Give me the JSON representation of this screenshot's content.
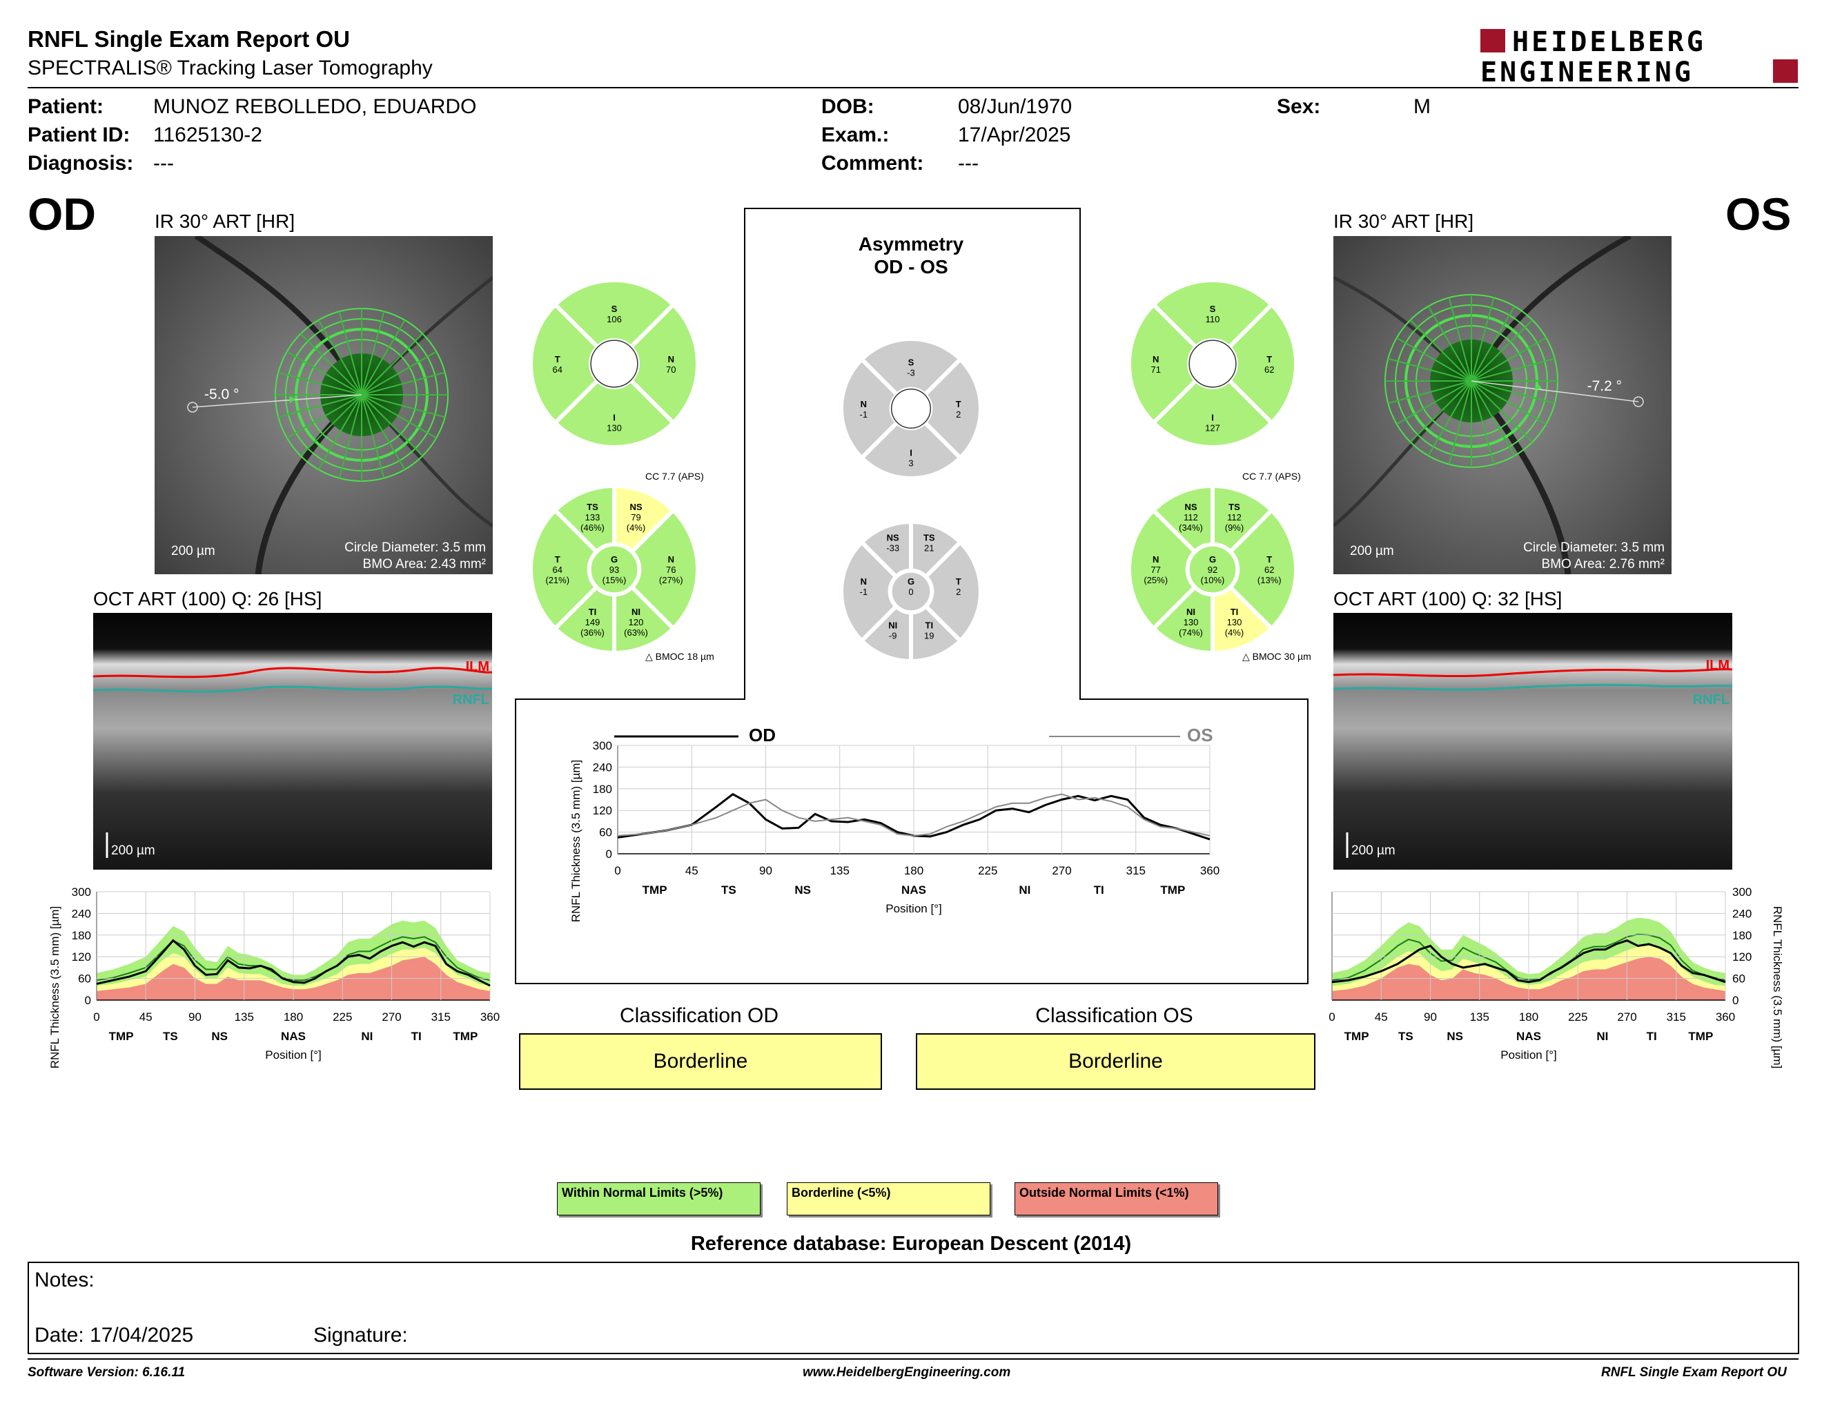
{
  "header": {
    "title": "RNFL Single Exam Report OU",
    "subtitle": "SPECTRALIS® Tracking Laser Tomography",
    "logo_line1": "HEIDELBERG",
    "logo_line2": "ENGINEERING"
  },
  "patient": {
    "patient_label": "Patient:",
    "patient": "MUNOZ REBOLLEDO, EDUARDO",
    "id_label": "Patient ID:",
    "id": "11625130-2",
    "diag_label": "Diagnosis:",
    "diagnosis": "---",
    "dob_label": "DOB:",
    "dob": "08/Jun/1970",
    "exam_label": "Exam.:",
    "exam": "17/Apr/2025",
    "comment_label": "Comment:",
    "comment": "---",
    "sex_label": "Sex:",
    "sex": "M"
  },
  "od": {
    "eye": "OD",
    "ir_title": "IR 30° ART [HR]",
    "angle": "-5.0 °",
    "scale": "200 µm",
    "circle": "Circle Diameter: 3.5 mm",
    "bmo": "BMO Area: 2.43 mm²",
    "oct_title": "OCT ART (100) Q: 26 [HS]",
    "ilm": "ILM",
    "rnfl": "RNFL",
    "oct_scale": "200 µm",
    "quad": {
      "s": "106",
      "n": "70",
      "i": "130",
      "t": "64"
    },
    "cc": "CC 7.7 (APS)",
    "bmoc": "BMOC 18 µm",
    "sectors": {
      "ts": [
        "TS",
        "133",
        "(46%)"
      ],
      "ns": [
        "NS",
        "79",
        "(4%)"
      ],
      "n": [
        "N",
        "76",
        "(27%)"
      ],
      "ni": [
        "NI",
        "120",
        "(63%)"
      ],
      "ti": [
        "TI",
        "149",
        "(36%)"
      ],
      "t": [
        "T",
        "64",
        "(21%)"
      ],
      "g": [
        "G",
        "93",
        "(15%)"
      ]
    },
    "class_title": "Classification OD",
    "class": "Borderline"
  },
  "os": {
    "eye": "OS",
    "ir_title": "IR 30° ART [HR]",
    "angle": "-7.2 °",
    "scale": "200 µm",
    "circle": "Circle Diameter: 3.5 mm",
    "bmo": "BMO Area: 2.76 mm²",
    "oct_title": "OCT ART (100) Q: 32 [HS]",
    "ilm": "ILM",
    "rnfl": "RNFL",
    "oct_scale": "200 µm",
    "quad": {
      "s": "110",
      "n": "71",
      "i": "127",
      "t": "62"
    },
    "cc": "CC 7.7 (APS)",
    "bmoc": "BMOC 30 µm",
    "sectors": {
      "ns": [
        "NS",
        "112",
        "(34%)"
      ],
      "ts": [
        "TS",
        "112",
        "(9%)"
      ],
      "t": [
        "T",
        "62",
        "(13%)"
      ],
      "ti": [
        "TI",
        "130",
        "(4%)"
      ],
      "ni": [
        "NI",
        "130",
        "(74%)"
      ],
      "n": [
        "N",
        "77",
        "(25%)"
      ],
      "g": [
        "G",
        "92",
        "(10%)"
      ]
    },
    "class_title": "Classification OS",
    "class": "Borderline"
  },
  "asym": {
    "title1": "Asymmetry",
    "title2": "OD - OS",
    "quad": {
      "s": [
        "S",
        "-3"
      ],
      "n": [
        "N",
        "-1"
      ],
      "t": [
        "T",
        "2"
      ],
      "i": [
        "I",
        "3"
      ]
    },
    "sectors": {
      "ns": [
        "NS",
        "-33"
      ],
      "ts": [
        "TS",
        "21"
      ],
      "n": [
        "N",
        "-1"
      ],
      "g": [
        "G",
        "0"
      ],
      "t": [
        "T",
        "2"
      ],
      "ni": [
        "NI",
        "-9"
      ],
      "ti": [
        "TI",
        "19"
      ]
    }
  },
  "chart_data": [
    {
      "type": "line",
      "id": "combined",
      "legend": [
        "OD",
        "OS"
      ],
      "ylabel": "RNFL Thickness (3.5 mm) [µm]",
      "xlabel": "Position [°]",
      "ylim": [
        0,
        300
      ],
      "xlim": [
        0,
        360
      ],
      "yticks": [
        0,
        60,
        120,
        180,
        240,
        300
      ],
      "xticks": [
        0,
        45,
        90,
        135,
        180,
        225,
        270,
        315,
        360
      ],
      "sector_labels": [
        "TMP",
        "TS",
        "NS",
        "NAS",
        "NI",
        "TI",
        "TMP"
      ],
      "x": [
        0,
        15,
        30,
        45,
        60,
        70,
        80,
        90,
        100,
        110,
        120,
        130,
        140,
        150,
        160,
        170,
        180,
        190,
        200,
        210,
        220,
        230,
        240,
        250,
        260,
        270,
        280,
        290,
        300,
        310,
        320,
        330,
        340,
        350,
        360
      ],
      "series": [
        {
          "name": "OD",
          "values": [
            45,
            55,
            65,
            80,
            130,
            165,
            140,
            95,
            70,
            72,
            110,
            90,
            88,
            95,
            85,
            60,
            50,
            48,
            60,
            80,
            95,
            120,
            125,
            115,
            135,
            150,
            160,
            148,
            160,
            150,
            100,
            80,
            70,
            55,
            40
          ]
        },
        {
          "name": "OS",
          "values": [
            50,
            55,
            65,
            80,
            100,
            120,
            140,
            150,
            120,
            100,
            90,
            95,
            100,
            90,
            80,
            55,
            50,
            55,
            75,
            90,
            110,
            130,
            140,
            140,
            155,
            165,
            150,
            155,
            145,
            130,
            95,
            75,
            70,
            60,
            50
          ]
        }
      ]
    },
    {
      "type": "area",
      "id": "od_profile",
      "ylabel": "RNFL Thickness (3.5 mm) [µm]",
      "xlabel": "Position [°]",
      "ylim": [
        0,
        300
      ],
      "xlim": [
        0,
        360
      ],
      "yticks": [
        0,
        60,
        120,
        180,
        240,
        300
      ],
      "xticks": [
        0,
        45,
        90,
        135,
        180,
        225,
        270,
        315,
        360
      ],
      "sector_labels": [
        "TMP",
        "TS",
        "NS",
        "NAS",
        "NI",
        "TI",
        "TMP"
      ],
      "x": [
        0,
        15,
        30,
        45,
        60,
        70,
        80,
        90,
        100,
        110,
        120,
        130,
        140,
        150,
        160,
        170,
        180,
        190,
        200,
        210,
        220,
        230,
        240,
        250,
        260,
        270,
        280,
        290,
        300,
        310,
        320,
        330,
        340,
        350,
        360
      ],
      "bands": {
        "red_top": [
          25,
          30,
          35,
          45,
          80,
          100,
          90,
          60,
          45,
          45,
          65,
          55,
          55,
          55,
          45,
          35,
          30,
          30,
          35,
          45,
          55,
          70,
          75,
          75,
          85,
          95,
          110,
          115,
          120,
          100,
          70,
          50,
          40,
          30,
          25
        ],
        "yellow_top": [
          40,
          45,
          55,
          65,
          110,
          130,
          120,
          85,
          60,
          60,
          90,
          75,
          72,
          72,
          60,
          45,
          40,
          40,
          50,
          60,
          72,
          95,
          100,
          100,
          115,
          128,
          140,
          140,
          145,
          130,
          95,
          70,
          60,
          45,
          40
        ],
        "green_top": [
          75,
          85,
          100,
          120,
          170,
          205,
          190,
          145,
          110,
          105,
          150,
          130,
          125,
          115,
          100,
          80,
          70,
          70,
          85,
          105,
          125,
          160,
          170,
          170,
          190,
          210,
          220,
          215,
          220,
          200,
          150,
          110,
          95,
          80,
          75
        ],
        "normal": [
          55,
          62,
          75,
          90,
          135,
          165,
          150,
          110,
          85,
          85,
          120,
          100,
          95,
          95,
          80,
          62,
          55,
          55,
          65,
          80,
          95,
          125,
          135,
          135,
          150,
          165,
          175,
          170,
          175,
          160,
          120,
          90,
          75,
          62,
          55
        ]
      },
      "series": [
        {
          "name": "OD",
          "values": [
            45,
            55,
            65,
            80,
            130,
            165,
            140,
            95,
            70,
            72,
            110,
            90,
            88,
            95,
            85,
            60,
            50,
            48,
            60,
            80,
            95,
            120,
            125,
            115,
            135,
            150,
            160,
            148,
            160,
            150,
            100,
            80,
            70,
            55,
            40
          ]
        }
      ]
    },
    {
      "type": "area",
      "id": "os_profile",
      "ylabel": "RNFL Thickness (3.5 mm) [µm]",
      "xlabel": "Position [°]",
      "ylim": [
        0,
        300
      ],
      "xlim": [
        0,
        360
      ],
      "yticks": [
        0,
        60,
        120,
        180,
        240,
        300
      ],
      "xticks": [
        0,
        45,
        90,
        135,
        180,
        225,
        270,
        315,
        360
      ],
      "sector_labels": [
        "TMP",
        "TS",
        "NS",
        "NAS",
        "NI",
        "TI",
        "TMP"
      ],
      "x": [
        0,
        15,
        30,
        45,
        60,
        70,
        80,
        90,
        100,
        110,
        120,
        130,
        140,
        150,
        160,
        170,
        180,
        190,
        200,
        210,
        220,
        230,
        240,
        250,
        260,
        270,
        280,
        290,
        300,
        310,
        320,
        330,
        340,
        350,
        360
      ],
      "bands": {
        "red_top": [
          25,
          30,
          40,
          60,
          90,
          100,
          95,
          70,
          55,
          60,
          85,
          75,
          70,
          60,
          45,
          35,
          30,
          30,
          40,
          55,
          65,
          80,
          85,
          85,
          95,
          105,
          115,
          120,
          115,
          95,
          65,
          45,
          35,
          30,
          25
        ],
        "yellow_top": [
          40,
          45,
          60,
          85,
          120,
          135,
          130,
          100,
          80,
          85,
          115,
          105,
          95,
          85,
          65,
          48,
          42,
          45,
          55,
          72,
          88,
          105,
          112,
          112,
          125,
          138,
          148,
          150,
          148,
          125,
          90,
          65,
          52,
          42,
          40
        ],
        "green_top": [
          75,
          85,
          110,
          150,
          195,
          215,
          205,
          170,
          140,
          140,
          180,
          165,
          150,
          130,
          105,
          80,
          72,
          75,
          95,
          120,
          145,
          175,
          185,
          185,
          200,
          220,
          228,
          225,
          215,
          190,
          140,
          105,
          90,
          80,
          75
        ],
        "normal": [
          55,
          62,
          82,
          112,
          150,
          168,
          160,
          130,
          108,
          110,
          145,
          130,
          118,
          105,
          82,
          62,
          56,
          58,
          72,
          92,
          112,
          140,
          148,
          148,
          160,
          175,
          182,
          180,
          172,
          152,
          110,
          82,
          70,
          62,
          55
        ]
      },
      "series": [
        {
          "name": "OS",
          "values": [
            50,
            55,
            65,
            80,
            100,
            120,
            140,
            150,
            120,
            100,
            90,
            95,
            100,
            90,
            80,
            55,
            50,
            55,
            75,
            90,
            110,
            130,
            140,
            140,
            155,
            165,
            150,
            155,
            145,
            130,
            95,
            75,
            70,
            60,
            50
          ]
        }
      ]
    }
  ],
  "legend": {
    "wnl": "Within Normal Limits (>5%)",
    "bl": "Borderline (<5%)",
    "onl": "Outside Normal Limits (<1%)",
    "green": "#aaf07a",
    "yellow": "#ffff99",
    "red": "#f08c80"
  },
  "refdb": "Reference database: European Descent (2014)",
  "notes": {
    "notes": "Notes:",
    "date": "Date: 17/04/2025",
    "signature": "Signature:"
  },
  "footer": {
    "software": "Software Version: 6.16.11",
    "web": "www.HeidelbergEngineering.com",
    "report": "RNFL Single Exam Report OU"
  }
}
